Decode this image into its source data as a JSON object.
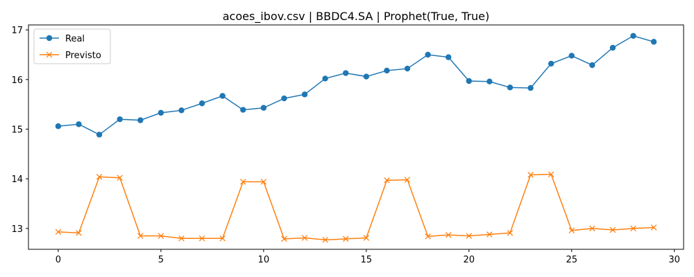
{
  "chart_data": {
    "type": "line",
    "title": "acoes_ibov.csv | BBDC4.SA | Prophet(True, True)",
    "xlabel": "",
    "ylabel": "",
    "xlim": [
      -1.45,
      30.45
    ],
    "ylim": [
      12.58,
      17.1
    ],
    "xticks": [
      0,
      5,
      10,
      15,
      20,
      25,
      30
    ],
    "yticks": [
      13,
      14,
      15,
      16,
      17
    ],
    "grid": false,
    "legend_position": "upper-left",
    "x": [
      0,
      1,
      2,
      3,
      4,
      5,
      6,
      7,
      8,
      9,
      10,
      11,
      12,
      13,
      14,
      15,
      16,
      17,
      18,
      19,
      20,
      21,
      22,
      23,
      24,
      25,
      26,
      27,
      28,
      29
    ],
    "series": [
      {
        "name": "Real",
        "color": "#1f77b4",
        "marker": "circle",
        "values": [
          15.06,
          15.1,
          14.89,
          15.2,
          15.18,
          15.33,
          15.38,
          15.52,
          15.67,
          15.39,
          15.43,
          15.62,
          15.7,
          16.02,
          16.13,
          16.06,
          16.18,
          16.22,
          16.5,
          16.45,
          15.97,
          15.96,
          15.84,
          15.83,
          16.32,
          16.48,
          16.29,
          16.64,
          16.88,
          16.76
        ]
      },
      {
        "name": "Previsto",
        "color": "#ff7f0e",
        "marker": "x",
        "values": [
          12.93,
          12.91,
          14.04,
          14.02,
          12.85,
          12.85,
          12.8,
          12.8,
          12.8,
          13.94,
          13.94,
          12.79,
          12.81,
          12.77,
          12.79,
          12.81,
          13.97,
          13.98,
          12.84,
          12.87,
          12.85,
          12.88,
          12.91,
          14.08,
          14.09,
          12.96,
          13.0,
          12.97,
          13.0,
          13.02
        ]
      }
    ]
  }
}
